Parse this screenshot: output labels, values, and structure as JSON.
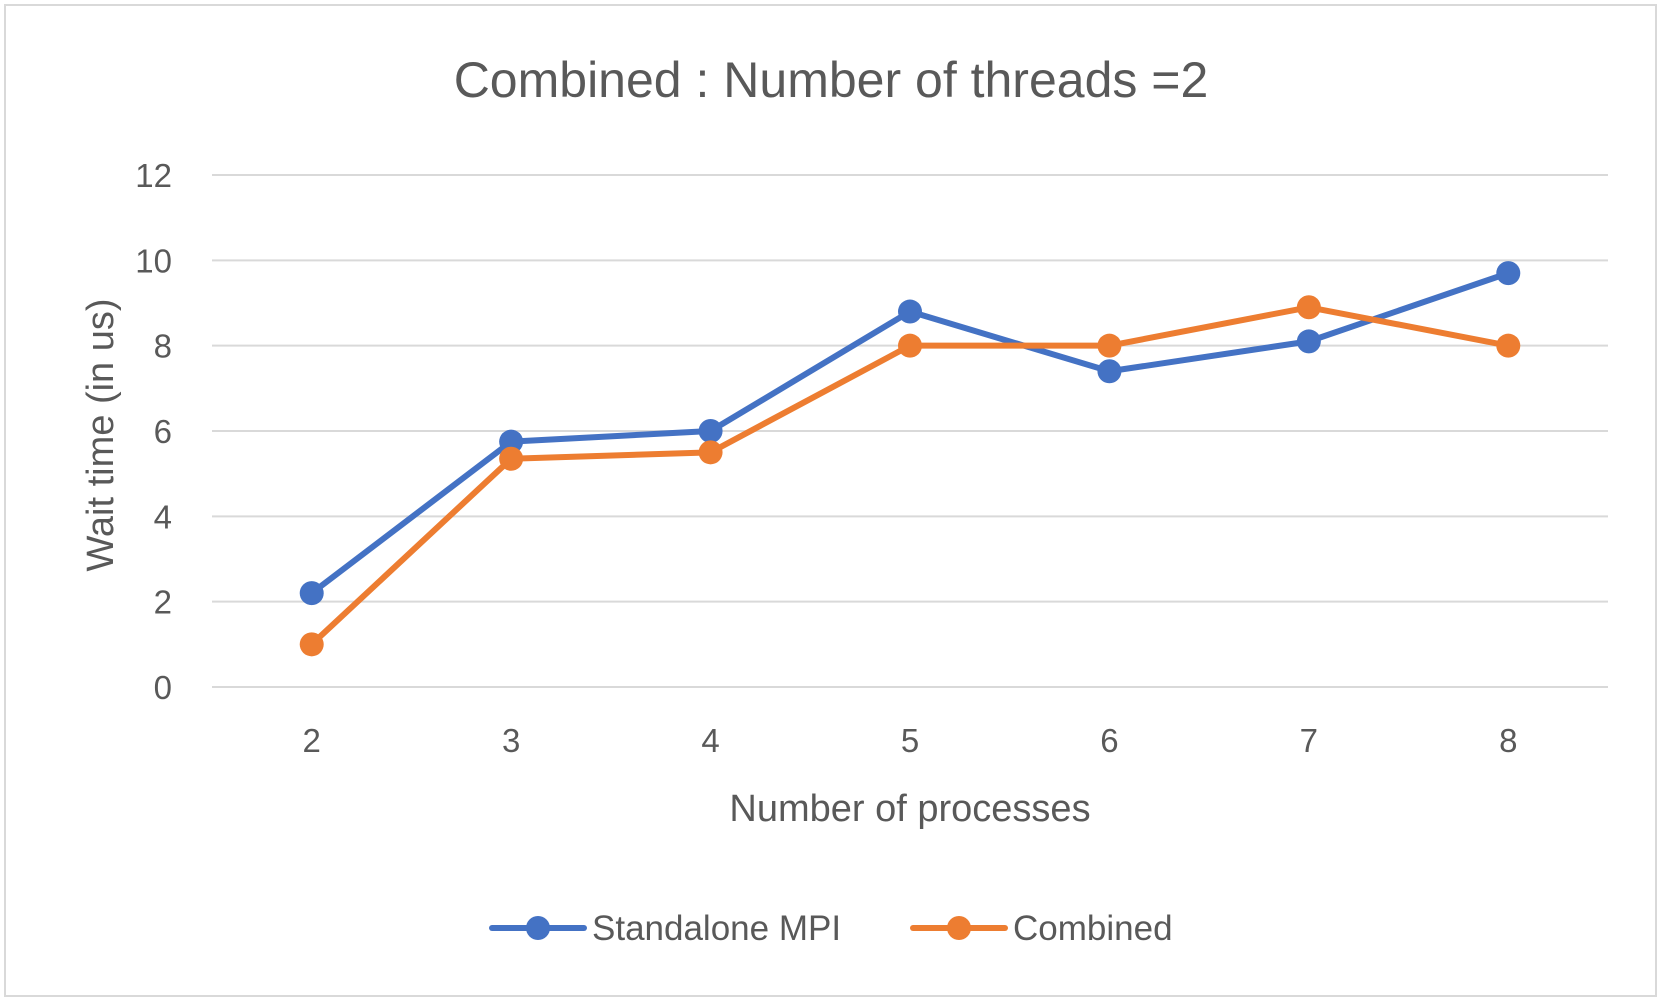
{
  "chart_data": {
    "type": "line",
    "title": "Combined : Number of threads =2",
    "xlabel": "Number of processes",
    "ylabel": "Wait time (in us)",
    "categories": [
      "2",
      "3",
      "4",
      "5",
      "6",
      "7",
      "8"
    ],
    "ylim": [
      0,
      12
    ],
    "yticks": [
      0,
      2,
      4,
      6,
      8,
      10,
      12
    ],
    "grid": true,
    "legend_position": "bottom",
    "series": [
      {
        "name": "Standalone MPI",
        "color": "#4472c4",
        "values": [
          2.2,
          5.75,
          6.0,
          8.8,
          7.4,
          8.1,
          9.7
        ]
      },
      {
        "name": "Combined",
        "color": "#ed7d31",
        "values": [
          1.0,
          5.35,
          5.5,
          8.0,
          8.0,
          8.9,
          8.0
        ]
      }
    ]
  }
}
